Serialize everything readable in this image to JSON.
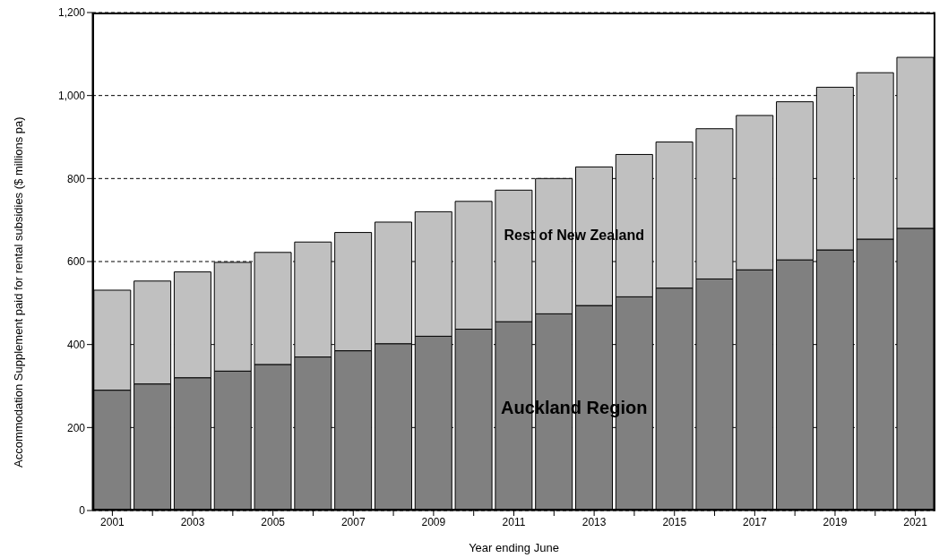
{
  "chart_data": {
    "type": "bar",
    "stacked": true,
    "xlabel": "Year ending June",
    "ylabel": "Accommodation Supplement paid for rental subsidies  ($ millions pa)",
    "categories": [
      "2001",
      null,
      "2003",
      null,
      "2005",
      null,
      "2007",
      null,
      "2009",
      null,
      "2011",
      null,
      "2013",
      null,
      "2015",
      null,
      "2017",
      null,
      "2019",
      null,
      "2021"
    ],
    "series": [
      {
        "name": "Auckland Region",
        "color": "#808080",
        "values": [
          290,
          305,
          320,
          336,
          352,
          370,
          385,
          402,
          420,
          437,
          455,
          474,
          494,
          515,
          536,
          558,
          580,
          604,
          628,
          654,
          680
        ]
      },
      {
        "name": "Rest of New Zealand",
        "color": "#c0c0c0",
        "values": [
          241,
          248,
          255,
          262,
          270,
          277,
          285,
          293,
          300,
          308,
          317,
          326,
          334,
          343,
          352,
          362,
          372,
          381,
          392,
          401,
          412
        ]
      }
    ],
    "ylim": [
      0,
      1200
    ],
    "yticks": [
      0,
      200,
      400,
      600,
      800,
      {
        "value": 1000,
        "label": "1,000"
      },
      {
        "value": 1200,
        "label": "1,200"
      }
    ],
    "grid": "y",
    "line_style": "dashed"
  }
}
